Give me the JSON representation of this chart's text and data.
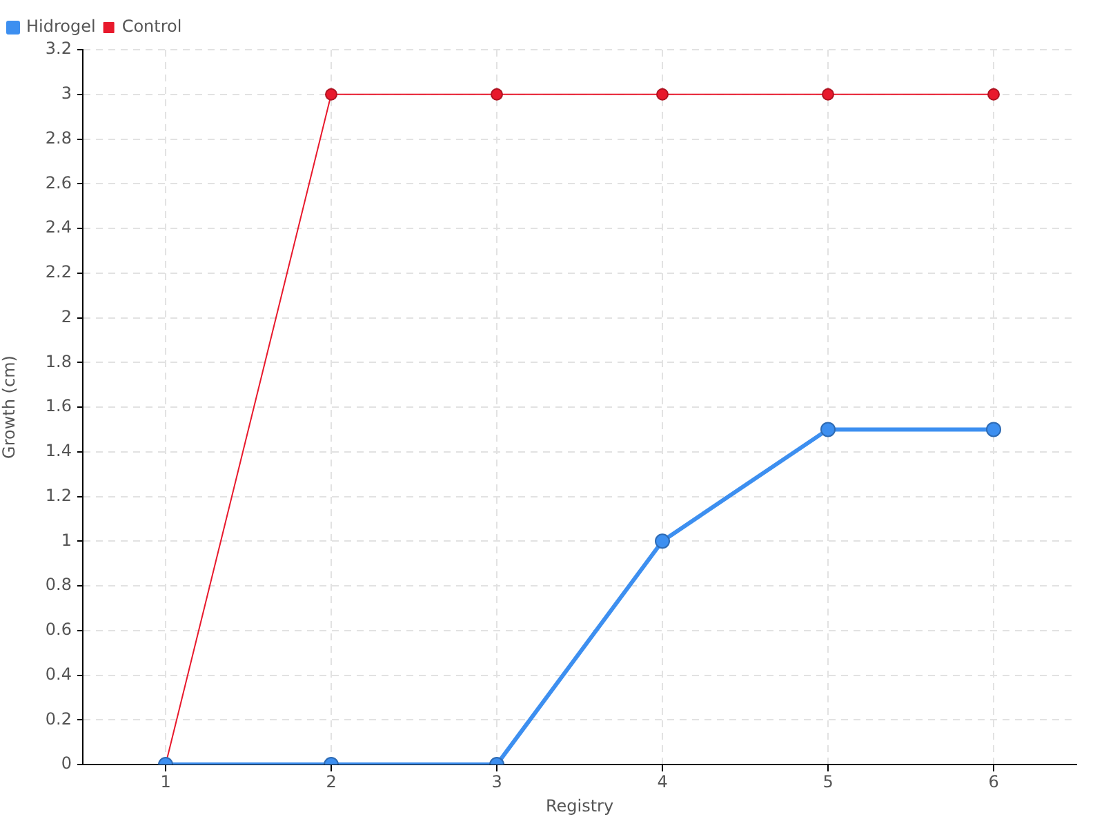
{
  "chart_data": {
    "type": "line",
    "xlabel": "Registry",
    "ylabel": "Growth (cm)",
    "categories": [
      "1",
      "2",
      "3",
      "4",
      "5",
      "6"
    ],
    "series": [
      {
        "name": "Hidrogel",
        "color": "#3d8ff0",
        "values": [
          0,
          0,
          0,
          1,
          1.5,
          1.5
        ]
      },
      {
        "name": "Control",
        "color": "#e8192c",
        "values": [
          0,
          3,
          3,
          3,
          3,
          3
        ]
      }
    ],
    "ylim": [
      0,
      3.2
    ],
    "yticks": [
      0,
      0.2,
      0.4,
      0.6,
      0.8,
      1,
      1.2,
      1.4,
      1.6,
      1.8,
      2,
      2.2,
      2.4,
      2.6,
      2.8,
      3,
      3.2
    ],
    "grid": true,
    "legend": "top left",
    "marker": "circle",
    "line_style": "solid"
  }
}
